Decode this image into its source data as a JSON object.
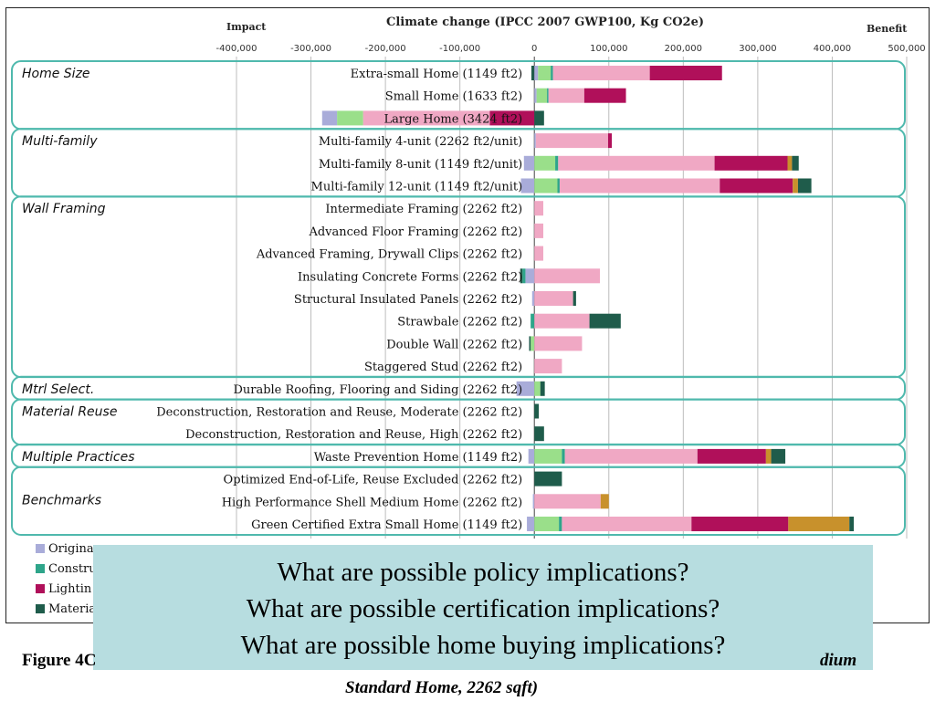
{
  "chart_data": {
    "type": "bar",
    "orientation": "horizontal",
    "stacked": true,
    "title": "Climate change (IPCC 2007 GWP100, Kg CO2e)",
    "left_axis_label": "Impact",
    "right_axis_label": "Benefit",
    "xlim": [
      -400000,
      500000
    ],
    "x_ticks": [
      "-400,000",
      "-300,000",
      "-200,000",
      "-100,000",
      "0",
      "100,000",
      "200,000",
      "300,000",
      "400,000",
      "500,000"
    ],
    "grid": true,
    "legend_position": "bottom-left",
    "series": [
      {
        "name": "Origina",
        "color": "#a9acd9"
      },
      {
        "name": "Constru",
        "color": "#2ea58a"
      },
      {
        "name": "Lightin",
        "color": "#b0105a"
      },
      {
        "name": "Materia",
        "color": "#1f5c4b"
      }
    ],
    "segment_colors": {
      "original": "#a9acd9",
      "green": "#9adf8a",
      "teal": "#2ea58a",
      "pink": "#f0a8c4",
      "magenta": "#b0105a",
      "orange": "#c8912c",
      "dark": "#1f5c4b"
    },
    "groups": [
      {
        "label": "Home Size",
        "rows": [
          "Extra-small Home (1149 ft2)",
          "Small Home (1633 ft2)",
          "Large Home (3424 ft2)"
        ]
      },
      {
        "label": "Multi-family",
        "rows": [
          "Multi-family 4-unit (2262 ft2/unit)",
          "Multi-family 8-unit (1149 ft2/unit)",
          "Multi-family 12-unit (1149 ft2/unit)"
        ]
      },
      {
        "label": "Wall Framing",
        "rows": [
          "Intermediate Framing (2262 ft2)",
          "Advanced Floor Framing (2262 ft2)",
          "Advanced Framing, Drywall Clips (2262 ft2)",
          "Insulating Concrete Forms (2262 ft2)",
          "Structural Insulated Panels (2262 ft2)",
          "Strawbale (2262 ft2)",
          "Double Wall (2262 ft2)",
          "Staggered Stud (2262 ft2)"
        ]
      },
      {
        "label": "Mtrl Select.",
        "rows": [
          "Durable Roofing, Flooring and Siding (2262 ft2)"
        ]
      },
      {
        "label": "Material Reuse",
        "rows": [
          "Deconstruction, Restoration and Reuse, Moderate (2262 ft2)",
          "Deconstruction, Restoration and Reuse, High (2262 ft2)"
        ]
      },
      {
        "label": "Multiple Practices",
        "rows": [
          "Waste Prevention Home (1149 ft2)"
        ]
      },
      {
        "label": "Benchmarks",
        "rows": [
          "Optimized End-of-Life, Reuse Excluded (2262 ft2)",
          "High Performance Shell Medium Home (2262 ft2)",
          "Green Certified Extra Small Home (1149 ft2)"
        ]
      }
    ],
    "rows": [
      {
        "label": "Extra-small Home (1149 ft2)",
        "segments": [
          {
            "c": "dark",
            "v": -4000
          },
          {
            "c": "original",
            "v": 5000
          },
          {
            "c": "green",
            "v": 17000
          },
          {
            "c": "teal",
            "v": 3000
          },
          {
            "c": "pink",
            "v": 130000
          },
          {
            "c": "magenta",
            "v": 97000
          }
        ]
      },
      {
        "label": "Small Home (1633 ft2)",
        "segments": [
          {
            "c": "original",
            "v": 3000
          },
          {
            "c": "green",
            "v": 14000
          },
          {
            "c": "teal",
            "v": 2000
          },
          {
            "c": "pink",
            "v": 48000
          },
          {
            "c": "magenta",
            "v": 56000
          }
        ]
      },
      {
        "label": "Large Home (3424 ft2)",
        "segments": [
          {
            "c": "magenta",
            "v": -60000
          },
          {
            "c": "pink",
            "v": -170000
          },
          {
            "c": "green",
            "v": -35000
          },
          {
            "c": "original",
            "v": -20000
          },
          {
            "c": "dark",
            "v": 13000
          }
        ]
      },
      {
        "label": "Multi-family 4-unit (2262 ft2/unit)",
        "segments": [
          {
            "c": "original",
            "v": 2000
          },
          {
            "c": "pink",
            "v": 97000
          },
          {
            "c": "magenta",
            "v": 5000
          }
        ]
      },
      {
        "label": "Multi-family 8-unit (1149 ft2/unit)",
        "segments": [
          {
            "c": "original",
            "v": -14000
          },
          {
            "c": "green",
            "v": 28000
          },
          {
            "c": "teal",
            "v": 4000
          },
          {
            "c": "pink",
            "v": 210000
          },
          {
            "c": "magenta",
            "v": 98000
          },
          {
            "c": "orange",
            "v": 6000
          },
          {
            "c": "dark",
            "v": 9000
          }
        ]
      },
      {
        "label": "Multi-family 12-unit (1149 ft2/unit)",
        "segments": [
          {
            "c": "original",
            "v": -18000
          },
          {
            "c": "green",
            "v": 31000
          },
          {
            "c": "teal",
            "v": 3000
          },
          {
            "c": "pink",
            "v": 215000
          },
          {
            "c": "magenta",
            "v": 98000
          },
          {
            "c": "orange",
            "v": 7000
          },
          {
            "c": "dark",
            "v": 18000
          }
        ]
      },
      {
        "label": "Intermediate Framing (2262 ft2)",
        "segments": [
          {
            "c": "pink",
            "v": 12000
          }
        ]
      },
      {
        "label": "Advanced Floor Framing (2262 ft2)",
        "segments": [
          {
            "c": "pink",
            "v": 12000
          }
        ]
      },
      {
        "label": "Advanced Framing, Drywall Clips (2262 ft2)",
        "segments": [
          {
            "c": "pink",
            "v": 12000
          }
        ]
      },
      {
        "label": "Insulating Concrete Forms (2262 ft2)",
        "segments": [
          {
            "c": "original",
            "v": -12000
          },
          {
            "c": "teal",
            "v": -4000
          },
          {
            "c": "dark",
            "v": -3000
          },
          {
            "c": "pink",
            "v": 88000
          }
        ]
      },
      {
        "label": "Structural Insulated Panels (2262 ft2)",
        "segments": [
          {
            "c": "original",
            "v": -3000
          },
          {
            "c": "pink",
            "v": 52000
          },
          {
            "c": "dark",
            "v": 4000
          }
        ]
      },
      {
        "label": "Strawbale (2262 ft2)",
        "segments": [
          {
            "c": "teal",
            "v": -5000
          },
          {
            "c": "pink",
            "v": 74000
          },
          {
            "c": "dark",
            "v": 42000
          }
        ]
      },
      {
        "label": "Double Wall (2262 ft2)",
        "segments": [
          {
            "c": "green",
            "v": -5000
          },
          {
            "c": "dark",
            "v": -2000
          },
          {
            "c": "pink",
            "v": 64000
          }
        ]
      },
      {
        "label": "Staggered Stud (2262 ft2)",
        "segments": [
          {
            "c": "pink",
            "v": 37000
          }
        ]
      },
      {
        "label": "Durable Roofing, Flooring and Siding (2262 ft2)",
        "segments": [
          {
            "c": "original",
            "v": -24000
          },
          {
            "c": "green",
            "v": 8000
          },
          {
            "c": "dark",
            "v": 6000
          }
        ]
      },
      {
        "label": "Deconstruction, Restoration and Reuse, Moderate (2262 ft2)",
        "segments": [
          {
            "c": "dark",
            "v": 6000
          }
        ]
      },
      {
        "label": "Deconstruction, Restoration and Reuse, High (2262 ft2)",
        "segments": [
          {
            "c": "dark",
            "v": 13000
          }
        ]
      },
      {
        "label": "Waste Prevention Home (1149 ft2)",
        "segments": [
          {
            "c": "original",
            "v": -8000
          },
          {
            "c": "green",
            "v": 37000
          },
          {
            "c": "teal",
            "v": 4000
          },
          {
            "c": "pink",
            "v": 178000
          },
          {
            "c": "magenta",
            "v": 92000
          },
          {
            "c": "orange",
            "v": 7000
          },
          {
            "c": "dark",
            "v": 19000
          }
        ]
      },
      {
        "label": "Optimized End-of-Life, Reuse Excluded (2262 ft2)",
        "segments": [
          {
            "c": "dark",
            "v": 37000
          }
        ]
      },
      {
        "label": "High Performance Shell Medium Home (2262 ft2)",
        "segments": [
          {
            "c": "original",
            "v": -2000
          },
          {
            "c": "pink",
            "v": 89000
          },
          {
            "c": "orange",
            "v": 11000
          }
        ]
      },
      {
        "label": "Green Certified Extra Small Home (1149 ft2)",
        "segments": [
          {
            "c": "original",
            "v": -10000
          },
          {
            "c": "green",
            "v": 33000
          },
          {
            "c": "teal",
            "v": 4000
          },
          {
            "c": "pink",
            "v": 174000
          },
          {
            "c": "magenta",
            "v": 130000
          },
          {
            "c": "orange",
            "v": 82000
          },
          {
            "c": "dark",
            "v": 6000
          }
        ]
      }
    ]
  },
  "callout": {
    "lines": [
      "What are possible policy implications?",
      "What are possible certification implications?",
      "What are possible home buying implications?"
    ]
  },
  "caption": {
    "figure_label": "Figure 4C",
    "line1_tail": "dium",
    "line2": "Standard Home, 2262 sqft)"
  }
}
